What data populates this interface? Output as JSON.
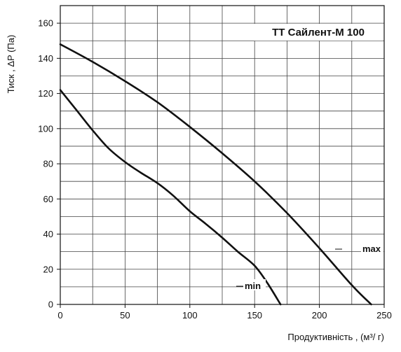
{
  "chart_data": {
    "type": "line",
    "title": "ТТ Сайлент-М 100",
    "xlabel": "Продуктивність , (м³/ г)",
    "ylabel": "Тиск , ΔP (Па)",
    "xlim": [
      0,
      250
    ],
    "ylim": [
      0,
      170
    ],
    "x_ticks": [
      0,
      50,
      100,
      150,
      200,
      250
    ],
    "y_ticks": [
      0,
      20,
      40,
      60,
      80,
      100,
      120,
      140,
      160
    ],
    "grid": true,
    "series": [
      {
        "name": "max",
        "points": [
          [
            0,
            148
          ],
          [
            25,
            138
          ],
          [
            50,
            127
          ],
          [
            75,
            115
          ],
          [
            100,
            101
          ],
          [
            125,
            86
          ],
          [
            150,
            70
          ],
          [
            175,
            52
          ],
          [
            200,
            32
          ],
          [
            225,
            11
          ],
          [
            240,
            0
          ]
        ]
      },
      {
        "name": "min",
        "points": [
          [
            0,
            122
          ],
          [
            12,
            111
          ],
          [
            25,
            99
          ],
          [
            37,
            89
          ],
          [
            50,
            81
          ],
          [
            62,
            75
          ],
          [
            75,
            69
          ],
          [
            87,
            62
          ],
          [
            100,
            53
          ],
          [
            112,
            46
          ],
          [
            125,
            38
          ],
          [
            137,
            30
          ],
          [
            150,
            22
          ],
          [
            160,
            12
          ],
          [
            170,
            0
          ]
        ]
      }
    ]
  }
}
